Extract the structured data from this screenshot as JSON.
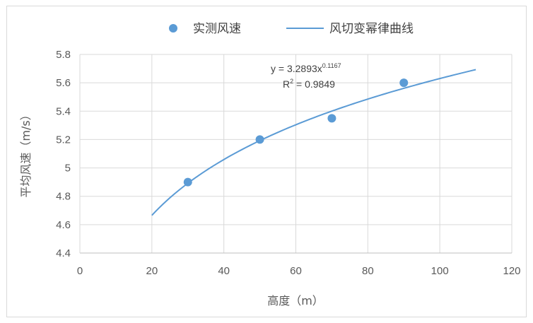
{
  "chart_data": {
    "type": "scatter",
    "title": "",
    "xlabel": "高度（m）",
    "ylabel": "平均风速（m/s）",
    "xlim": [
      0,
      120
    ],
    "ylim": [
      4.4,
      5.8
    ],
    "x_ticks": [
      "0",
      "20",
      "40",
      "60",
      "80",
      "100",
      "120"
    ],
    "y_ticks": [
      "4.4",
      "4.6",
      "4.8",
      "5",
      "5.2",
      "5.4",
      "5.6",
      "5.8"
    ],
    "grid": true,
    "legend_position": "top",
    "series": [
      {
        "name": "实测风速",
        "kind": "scatter",
        "color": "#5b9bd5",
        "x": [
          30,
          50,
          70,
          90
        ],
        "y": [
          4.9,
          5.2,
          5.35,
          5.6
        ]
      },
      {
        "name": "风切变幂律曲线",
        "kind": "power-fit",
        "color": "#5b9bd5",
        "coefficient": 3.2893,
        "exponent": 0.1167,
        "x_range": [
          20,
          110
        ]
      }
    ],
    "annotations": {
      "equation_main": "y = 3.2893x",
      "equation_exp": "0.1167",
      "r2_label": "R",
      "r2_exp": "2",
      "r2_value": " = 0.9849"
    }
  }
}
